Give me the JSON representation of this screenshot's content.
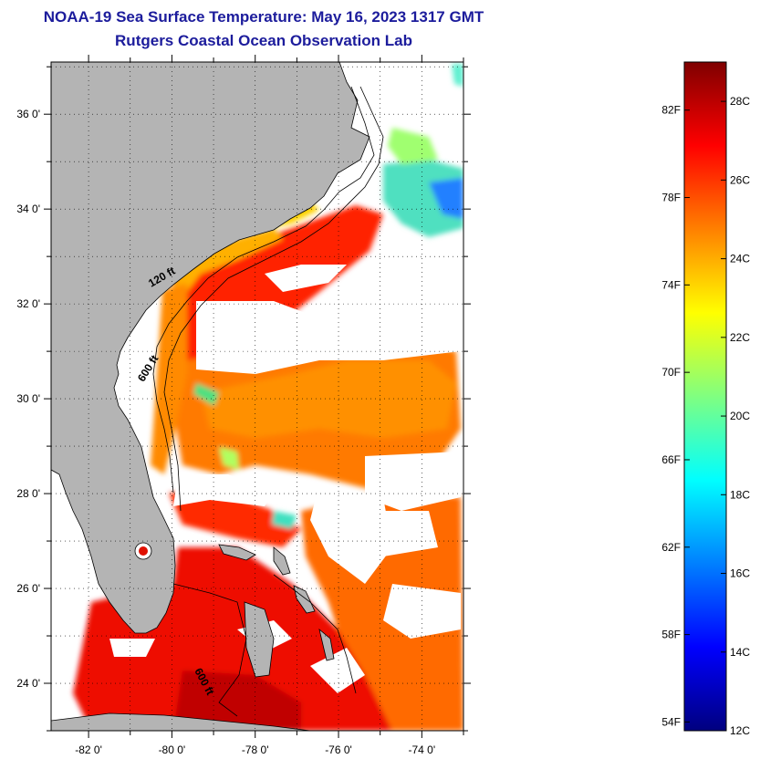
{
  "title": {
    "line1": "NOAA-19 Sea Surface Temperature:  May 16, 2023 1317 GMT",
    "line2": "Rutgers Coastal Ocean Observation Lab"
  },
  "map": {
    "lat_range": [
      23.0,
      37.1
    ],
    "lon_range": [
      -82.9,
      -73.0
    ],
    "lat_ticks": [
      {
        "value": 36,
        "label": "36 0'"
      },
      {
        "value": 34,
        "label": "34 0'"
      },
      {
        "value": 32,
        "label": "32 0'"
      },
      {
        "value": 30,
        "label": "30 0'"
      },
      {
        "value": 28,
        "label": "28 0'"
      },
      {
        "value": 26,
        "label": "26 0'"
      },
      {
        "value": 24,
        "label": "24 0'"
      }
    ],
    "lon_ticks": [
      {
        "value": -82,
        "label": "-82 0'"
      },
      {
        "value": -80,
        "label": "-80 0'"
      },
      {
        "value": -78,
        "label": "-78 0'"
      },
      {
        "value": -76,
        "label": "-76 0'"
      },
      {
        "value": -74,
        "label": "-74 0'"
      }
    ],
    "grid": "dotted",
    "land_color": "#b4b4b4",
    "isobath_labels": [
      {
        "text": "120 ft",
        "lon": -80.2,
        "lat": 32.5
      },
      {
        "text": "600 ft",
        "lon": -80.5,
        "lat": 30.6
      },
      {
        "text": "600 ft",
        "lon": -79.3,
        "lat": 24.0
      }
    ]
  },
  "colorbar": {
    "range_c": [
      12,
      29
    ],
    "celsius_labels": [
      {
        "value": 28,
        "label": "28C"
      },
      {
        "value": 26,
        "label": "26C"
      },
      {
        "value": 24,
        "label": "24C"
      },
      {
        "value": 22,
        "label": "22C"
      },
      {
        "value": 20,
        "label": "20C"
      },
      {
        "value": 18,
        "label": "18C"
      },
      {
        "value": 16,
        "label": "16C"
      },
      {
        "value": 14,
        "label": "14C"
      },
      {
        "value": 12,
        "label": "12C"
      }
    ],
    "fahrenheit_labels": [
      {
        "value": 82,
        "label": "82F"
      },
      {
        "value": 78,
        "label": "78F"
      },
      {
        "value": 74,
        "label": "74F"
      },
      {
        "value": 70,
        "label": "70F"
      },
      {
        "value": 66,
        "label": "66F"
      },
      {
        "value": 62,
        "label": "62F"
      },
      {
        "value": 58,
        "label": "58F"
      },
      {
        "value": 54,
        "label": "54F"
      }
    ],
    "colormap": [
      "#00007f",
      "#0000ff",
      "#0080ff",
      "#00ffff",
      "#80ff80",
      "#ffff00",
      "#ff8000",
      "#ff0000",
      "#7f0000"
    ]
  }
}
